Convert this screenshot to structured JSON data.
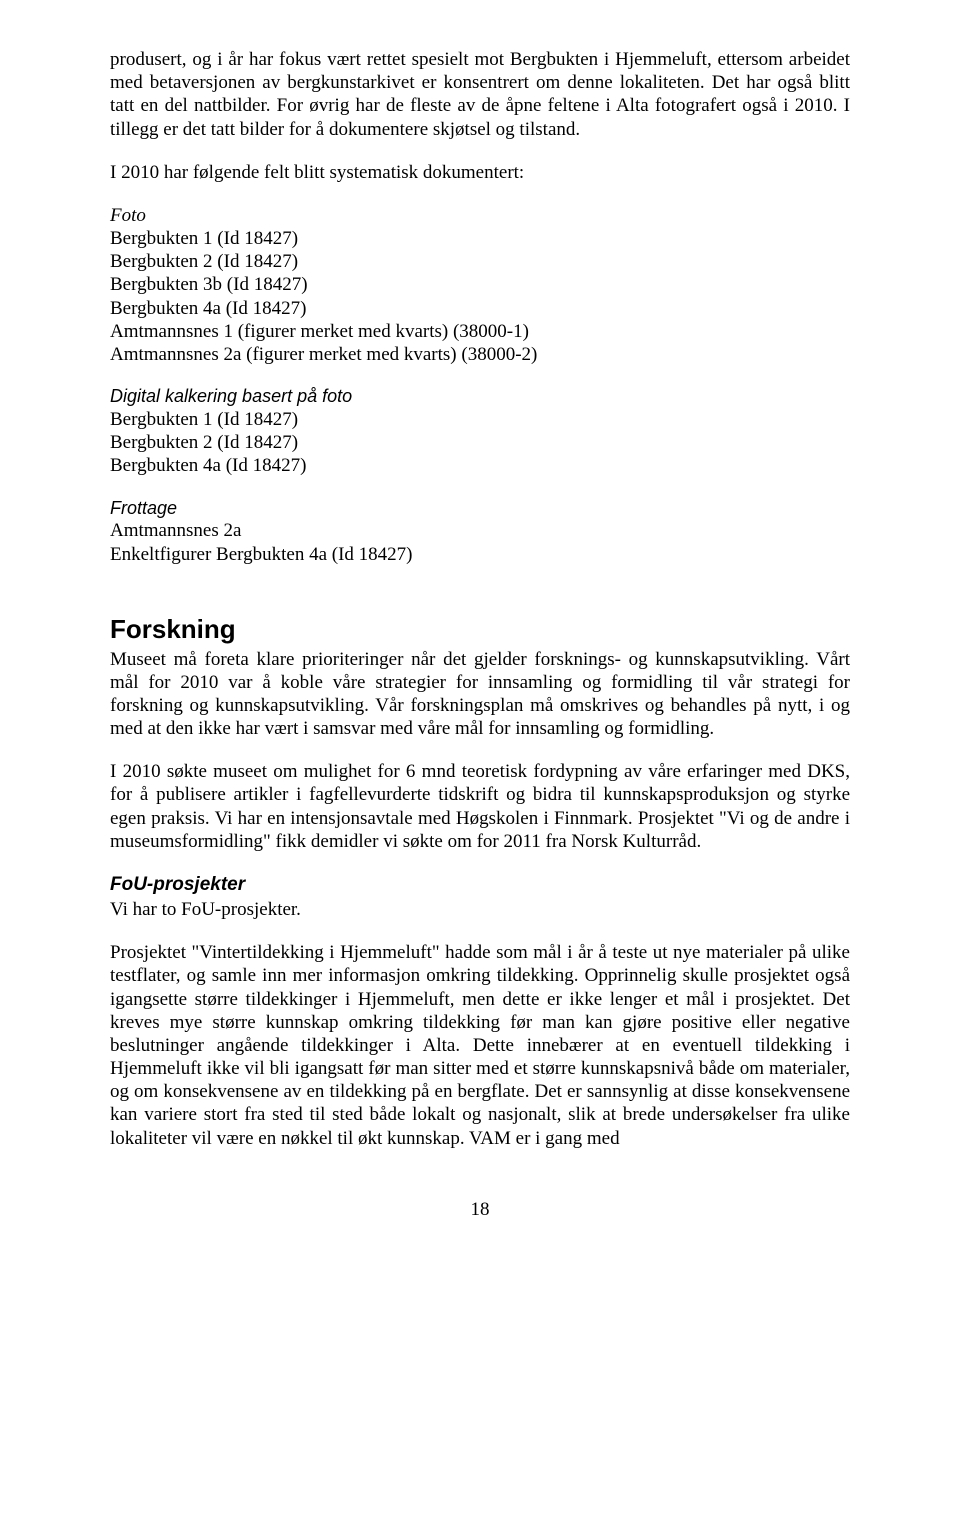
{
  "paragraphs": {
    "p1": "produsert, og i år har fokus vært rettet spesielt mot Bergbukten i Hjemmeluft, ettersom arbeidet med betaversjonen av bergkunstarkivet er konsentrert om denne lokaliteten. Det har også blitt tatt en del nattbilder. For øvrig har de fleste av de åpne feltene i Alta fotografert også i 2010. I tillegg er det tatt bilder for å dokumentere skjøtsel og tilstand.",
    "p2": "I 2010 har følgende felt blitt systematisk dokumentert:",
    "foto_label": "Foto",
    "foto_items": [
      "Bergbukten 1 (Id 18427)",
      "Bergbukten 2 (Id 18427)",
      "Bergbukten 3b (Id 18427)",
      "Bergbukten 4a (Id 18427)",
      "Amtmannsnes 1 (figurer merket med kvarts) (38000-1)",
      "Amtmannsnes 2a (figurer merket med kvarts) (38000-2)"
    ],
    "digital_label": "Digital kalkering basert på foto",
    "digital_items": [
      "Bergbukten 1 (Id 18427)",
      "Bergbukten 2 (Id 18427)",
      "Bergbukten 4a (Id 18427)"
    ],
    "frottage_label": "Frottage",
    "frottage_items": [
      "Amtmannsnes 2a",
      "Enkeltfigurer Bergbukten 4a (Id 18427)"
    ],
    "forskning_heading": "Forskning",
    "forskning_p1": "Museet må foreta klare prioriteringer når det gjelder forsknings- og kunnskapsutvikling. Vårt mål for 2010 var å koble våre strategier for innsamling og formidling til vår strategi for forskning og kunnskapsutvikling. Vår forskningsplan må omskrives og behandles på nytt, i og med at den ikke har vært i samsvar med våre mål for innsamling og formidling.",
    "forskning_p2": "I 2010 søkte museet om mulighet for 6 mnd teoretisk fordypning av våre erfaringer med DKS, for å publisere artikler i fagfellevurderte tidskrift og bidra til kunnskapsproduksjon og styrke egen praksis. Vi har en intensjonsavtale med Høgskolen i Finnmark. Prosjektet \"Vi og de andre i museumsformidling\" fikk demidler vi søkte om for 2011 fra Norsk Kulturråd.",
    "fou_heading": "FoU-prosjekter",
    "fou_p1": "Vi har to FoU-prosjekter.",
    "fou_p2": "Prosjektet \"Vintertildekking i Hjemmeluft\" hadde som mål i år å teste ut nye materialer på ulike testflater, og samle inn mer informasjon omkring tildekking. Opprinnelig skulle prosjektet også igangsette større tildekkinger i Hjemmeluft, men dette er ikke lenger et mål i prosjektet.  Det kreves mye større kunnskap omkring tildekking før man kan gjøre positive eller negative beslutninger angående tildekkinger i Alta. Dette innebærer at en eventuell tildekking i Hjemmeluft ikke vil bli igangsatt før man sitter med et større kunnskapsnivå både om materialer, og om konsekvensene av en tildekking på en bergflate. Det er sannsynlig at disse konsekvensene kan variere stort fra sted til sted både lokalt og nasjonalt, slik at brede undersøkelser fra ulike lokaliteter vil være en nøkkel til økt kunnskap. VAM er i gang med"
  },
  "page_number": "18"
}
